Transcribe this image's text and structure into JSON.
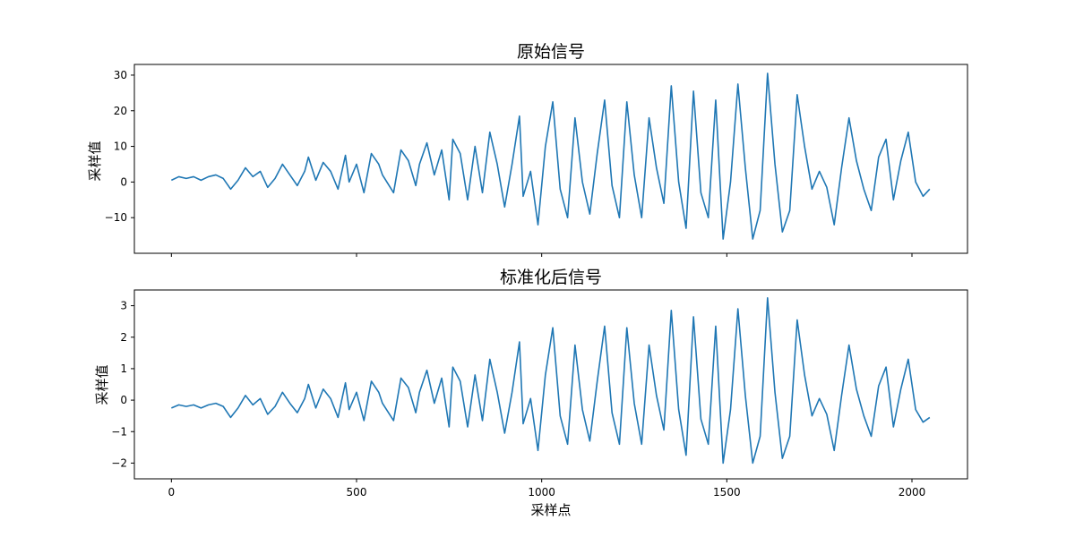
{
  "colors": {
    "line": "#1f77b4",
    "axes": "#000000",
    "background": "#ffffff"
  },
  "chart_data": [
    {
      "type": "line",
      "title": "原始信号",
      "ylabel": "采样值",
      "xlabel": "",
      "xlim": [
        -100,
        2150
      ],
      "ylim": [
        -20,
        33
      ],
      "xticks": [
        0,
        500,
        1000,
        1500,
        2000
      ],
      "xtick_labels_visible": false,
      "yticks": [
        -10,
        0,
        10,
        20,
        30
      ],
      "ytick_labels": [
        "−10",
        "0",
        "10",
        "20",
        "30"
      ],
      "grid": false,
      "series": [
        {
          "x": [
            0,
            20,
            40,
            60,
            80,
            100,
            120,
            140,
            160,
            180,
            200,
            220,
            240,
            260,
            280,
            300,
            320,
            340,
            360,
            370,
            390,
            410,
            430,
            450,
            470,
            480,
            500,
            520,
            540,
            560,
            570,
            600,
            620,
            640,
            660,
            670,
            690,
            710,
            730,
            750,
            760,
            780,
            800,
            820,
            840,
            860,
            880,
            900,
            920,
            940,
            950,
            970,
            990,
            1010,
            1030,
            1050,
            1070,
            1090,
            1110,
            1130,
            1150,
            1170,
            1190,
            1210,
            1230,
            1250,
            1270,
            1290,
            1310,
            1330,
            1350,
            1370,
            1390,
            1410,
            1430,
            1450,
            1470,
            1490,
            1510,
            1530,
            1550,
            1570,
            1590,
            1610,
            1630,
            1650,
            1670,
            1690,
            1710,
            1730,
            1750,
            1770,
            1790,
            1810,
            1830,
            1850,
            1870,
            1890,
            1910,
            1930,
            1950,
            1970,
            1990,
            2010,
            2030,
            2048
          ],
          "y": [
            0.5,
            1.5,
            1.0,
            1.5,
            0.5,
            1.5,
            2.0,
            1.0,
            -2.0,
            0.5,
            4.0,
            1.5,
            3.0,
            -1.5,
            1.0,
            5.0,
            2.0,
            -1.0,
            3.0,
            7.0,
            0.5,
            5.5,
            3.0,
            -2.0,
            7.5,
            0.0,
            5.0,
            -3.0,
            8.0,
            5.0,
            2.0,
            -3.0,
            9.0,
            6.0,
            -1.0,
            5.0,
            11.0,
            2.0,
            9.0,
            -5.0,
            12.0,
            8.0,
            -5.0,
            10.0,
            -3.0,
            14.0,
            5.0,
            -7.0,
            5.0,
            18.5,
            -4.0,
            3.0,
            -12.0,
            10.0,
            22.5,
            -2.0,
            -10.0,
            18.0,
            0.0,
            -9.0,
            8.0,
            23.0,
            -1.0,
            -10.0,
            22.5,
            2.0,
            -10.0,
            18.0,
            4.0,
            -6.0,
            27.0,
            0.0,
            -13.0,
            25.5,
            -3.0,
            -10.0,
            23.0,
            -16.0,
            0.0,
            27.5,
            4.0,
            -16.0,
            -8.0,
            30.5,
            5.0,
            -14.0,
            -8.0,
            24.5,
            10.0,
            -2.0,
            3.0,
            -1.5,
            -12.0,
            4.0,
            18.0,
            6.0,
            -2.0,
            -8.0,
            7.0,
            12.0,
            -5.0,
            6.0,
            14.0,
            0.0,
            -4.0,
            -2.0
          ]
        }
      ]
    },
    {
      "type": "line",
      "title": "标准化后信号",
      "ylabel": "采样值",
      "xlabel": "采样点",
      "xlim": [
        -100,
        2150
      ],
      "ylim": [
        -2.5,
        3.5
      ],
      "xticks": [
        0,
        500,
        1000,
        1500,
        2000
      ],
      "xtick_labels": [
        "0",
        "500",
        "1000",
        "1500",
        "2000"
      ],
      "yticks": [
        -2,
        -1,
        0,
        1,
        2,
        3
      ],
      "ytick_labels": [
        "−2",
        "−1",
        "0",
        "1",
        "2",
        "3"
      ],
      "grid": false,
      "series": [
        {
          "x": [
            0,
            20,
            40,
            60,
            80,
            100,
            120,
            140,
            160,
            180,
            200,
            220,
            240,
            260,
            280,
            300,
            320,
            340,
            360,
            370,
            390,
            410,
            430,
            450,
            470,
            480,
            500,
            520,
            540,
            560,
            570,
            600,
            620,
            640,
            660,
            670,
            690,
            710,
            730,
            750,
            760,
            780,
            800,
            820,
            840,
            860,
            880,
            900,
            920,
            940,
            950,
            970,
            990,
            1010,
            1030,
            1050,
            1070,
            1090,
            1110,
            1130,
            1150,
            1170,
            1190,
            1210,
            1230,
            1250,
            1270,
            1290,
            1310,
            1330,
            1350,
            1370,
            1390,
            1410,
            1430,
            1450,
            1470,
            1490,
            1510,
            1530,
            1550,
            1570,
            1590,
            1610,
            1630,
            1650,
            1670,
            1690,
            1710,
            1730,
            1750,
            1770,
            1790,
            1810,
            1830,
            1850,
            1870,
            1890,
            1910,
            1930,
            1950,
            1970,
            1990,
            2010,
            2030,
            2048
          ],
          "y": [
            -0.25,
            -0.15,
            -0.2,
            -0.15,
            -0.25,
            -0.15,
            -0.1,
            -0.2,
            -0.55,
            -0.25,
            0.15,
            -0.15,
            0.05,
            -0.45,
            -0.2,
            0.25,
            -0.1,
            -0.4,
            0.05,
            0.5,
            -0.25,
            0.35,
            0.05,
            -0.55,
            0.55,
            -0.3,
            0.25,
            -0.65,
            0.6,
            0.25,
            -0.1,
            -0.65,
            0.7,
            0.4,
            -0.4,
            0.25,
            0.95,
            -0.1,
            0.7,
            -0.85,
            1.05,
            0.6,
            -0.85,
            0.8,
            -0.65,
            1.3,
            0.25,
            -1.05,
            0.25,
            1.85,
            -0.75,
            0.05,
            -1.6,
            0.8,
            2.3,
            -0.5,
            -1.4,
            1.75,
            -0.3,
            -1.3,
            0.6,
            2.35,
            -0.4,
            -1.4,
            2.3,
            -0.1,
            -1.4,
            1.75,
            0.15,
            -0.95,
            2.85,
            -0.3,
            -1.75,
            2.65,
            -0.6,
            -1.4,
            2.35,
            -2.0,
            -0.3,
            2.9,
            0.15,
            -2.0,
            -1.15,
            3.25,
            0.25,
            -1.85,
            -1.15,
            2.55,
            0.8,
            -0.5,
            0.05,
            -0.45,
            -1.6,
            0.15,
            1.75,
            0.35,
            -0.5,
            -1.15,
            0.45,
            1.05,
            -0.85,
            0.35,
            1.3,
            -0.3,
            -0.7,
            -0.55
          ]
        }
      ]
    }
  ]
}
